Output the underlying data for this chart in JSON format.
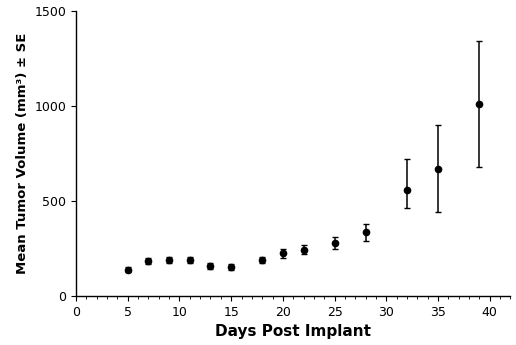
{
  "x": [
    5,
    7,
    9,
    11,
    13,
    15,
    18,
    20,
    22,
    25,
    28,
    32,
    35,
    39
  ],
  "y": [
    140,
    185,
    190,
    190,
    160,
    155,
    190,
    225,
    245,
    280,
    335,
    555,
    670,
    1010
  ],
  "yerr_low": [
    15,
    18,
    18,
    18,
    15,
    15,
    18,
    22,
    25,
    30,
    45,
    90,
    230,
    330
  ],
  "yerr_high": [
    15,
    18,
    18,
    18,
    15,
    15,
    18,
    22,
    25,
    30,
    45,
    165,
    230,
    330
  ],
  "xlabel": "Days Post Implant",
  "ylabel": "Mean Tumor Volume (mm³) ± SE",
  "xlim": [
    0,
    42
  ],
  "ylim": [
    0,
    1500
  ],
  "xticks": [
    0,
    5,
    10,
    15,
    20,
    25,
    30,
    35,
    40
  ],
  "yticks": [
    0,
    500,
    1000,
    1500
  ],
  "line_color": "#000000",
  "marker": "o",
  "markersize": 4.5,
  "linewidth": 1.6,
  "capsize": 2.5,
  "elinewidth": 1.1,
  "background_color": "#ffffff",
  "xlabel_fontsize": 11,
  "ylabel_fontsize": 9.5,
  "tick_fontsize": 9
}
